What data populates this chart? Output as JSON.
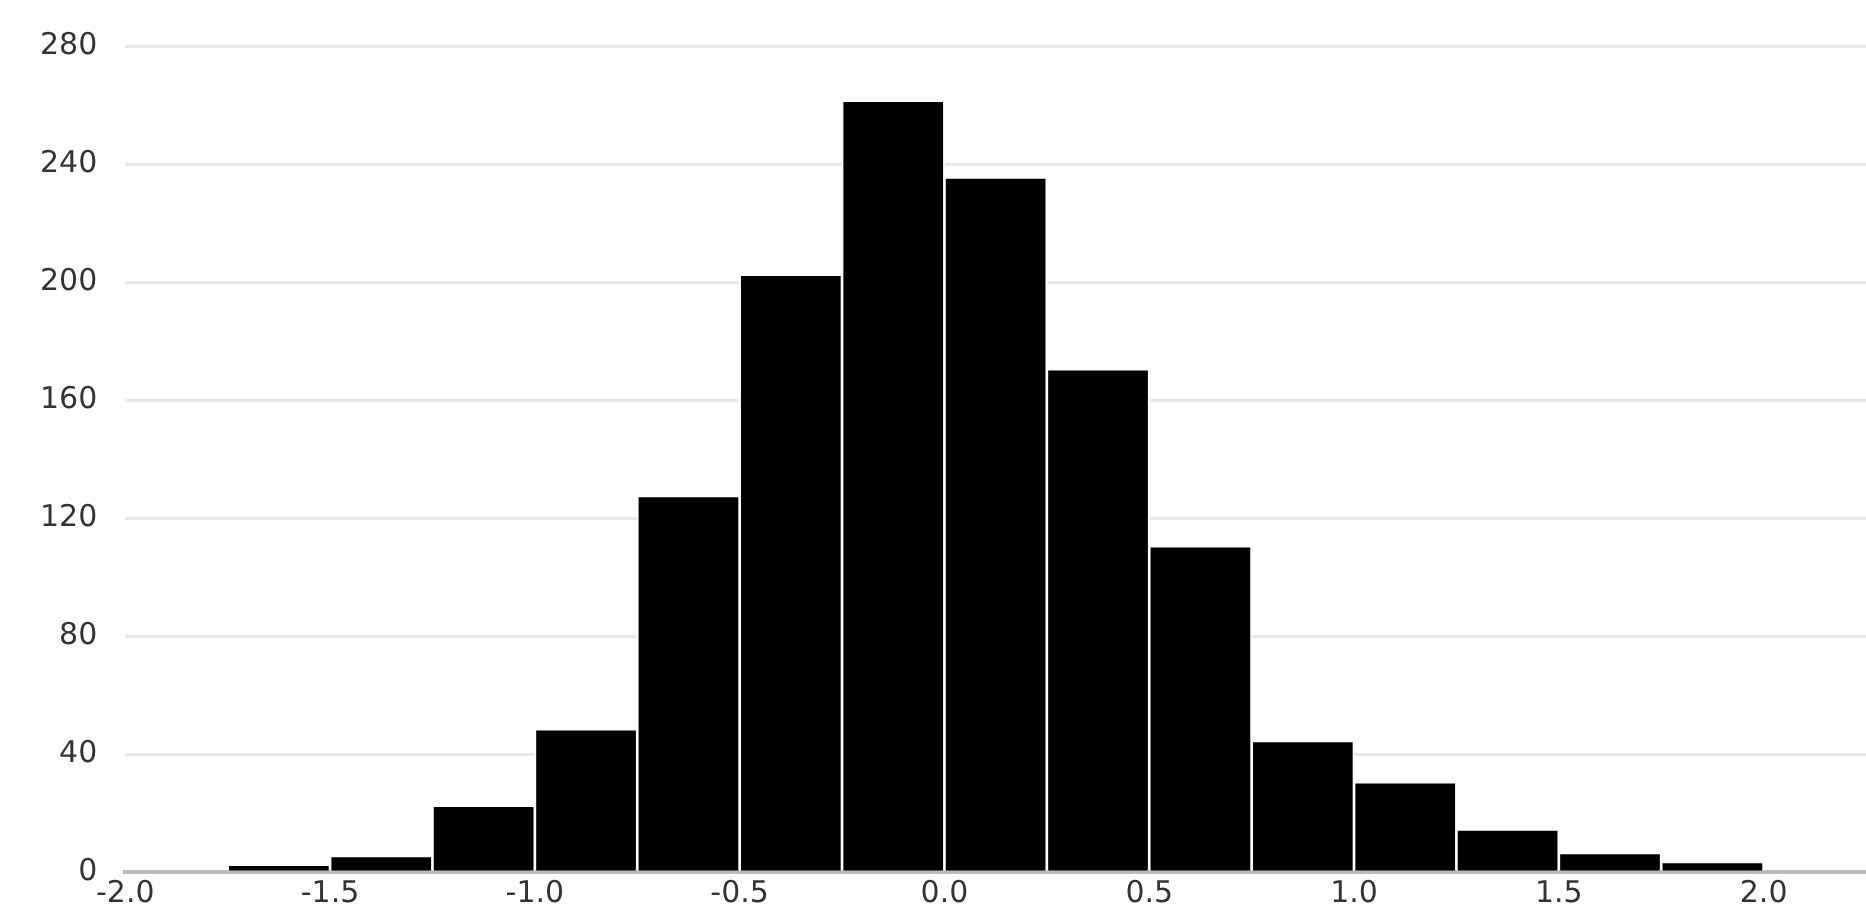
{
  "chart_data": {
    "type": "histogram",
    "bins": [
      -1.75,
      -1.5,
      -1.25,
      -1.0,
      -0.75,
      -0.5,
      -0.25,
      0,
      0.25,
      0.5,
      0.75,
      1.0,
      1.25,
      1.5,
      1.75,
      2.0
    ],
    "values": [
      2,
      5,
      22,
      48,
      127,
      202,
      261,
      235,
      170,
      110,
      44,
      30,
      14,
      6,
      3
    ],
    "color": "#000000",
    "xlim": [
      -2.0,
      2.25
    ],
    "xticks": [
      {
        "value": -2,
        "label": "-2.0"
      },
      {
        "value": -1.5,
        "label": "-1.5"
      },
      {
        "value": -1,
        "label": "-1.0"
      },
      {
        "value": -0.5,
        "label": "-0.5"
      },
      {
        "value": 0,
        "label": "0.0"
      },
      {
        "value": 0.5,
        "label": "0.5"
      },
      {
        "value": 1,
        "label": "1.0"
      },
      {
        "value": 1.5,
        "label": "1.5"
      },
      {
        "value": 2,
        "label": "2.0"
      }
    ],
    "ylim": [
      0,
      280
    ],
    "yticks": [
      0,
      40,
      80,
      120,
      160,
      200,
      240,
      280
    ],
    "grid": "y"
  }
}
